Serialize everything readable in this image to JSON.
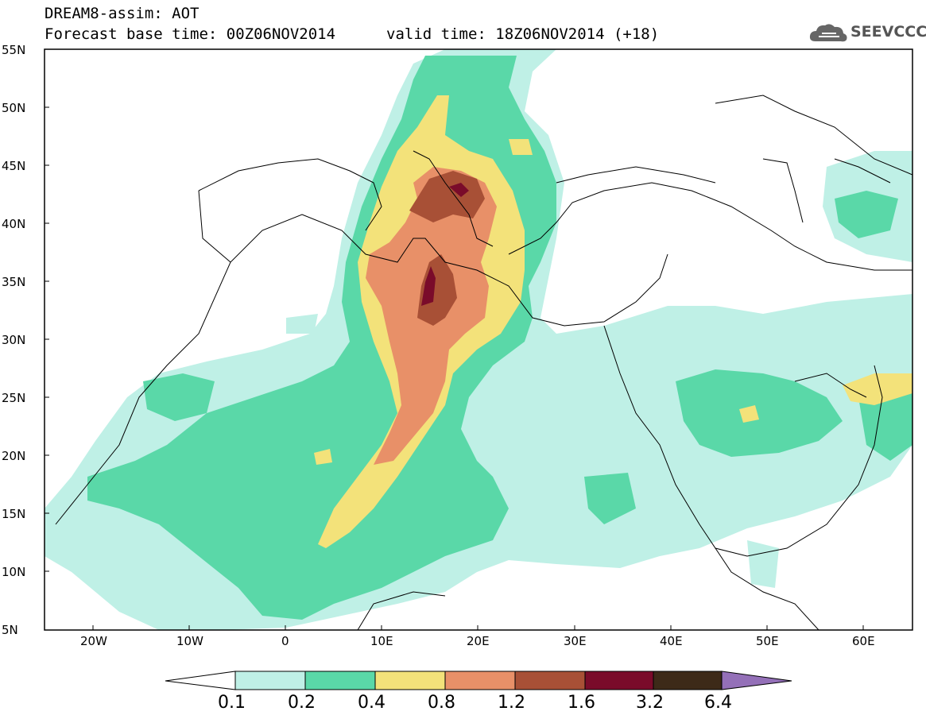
{
  "header": {
    "title": "DREAM8-assim: AOT",
    "base_time": "Forecast base time: 00Z06NOV2014",
    "valid_time": "valid time: 18Z06NOV2014 (+18)",
    "logo_text": "SEEVCCC",
    "logo_icon": "cloud-icon"
  },
  "map": {
    "lon_range": [
      -25,
      65
    ],
    "lat_range": [
      5,
      55
    ],
    "lat_labels": [
      "55N",
      "50N",
      "45N",
      "40N",
      "35N",
      "30N",
      "25N",
      "20N",
      "15N",
      "10N",
      "5N"
    ],
    "lon_labels": [
      "20W",
      "10W",
      "0",
      "10E",
      "20E",
      "30E",
      "40E",
      "50E",
      "60E"
    ]
  },
  "colorbar": {
    "labels": [
      "0.1",
      "0.2",
      "0.4",
      "0.8",
      "1.2",
      "1.6",
      "3.2",
      "6.4"
    ],
    "colors": [
      "#ffffff",
      "#bff0e6",
      "#5ad8a8",
      "#f3e27a",
      "#e89068",
      "#a85036",
      "#7a0b2a",
      "#3d2a18",
      "#9470b8"
    ]
  }
}
